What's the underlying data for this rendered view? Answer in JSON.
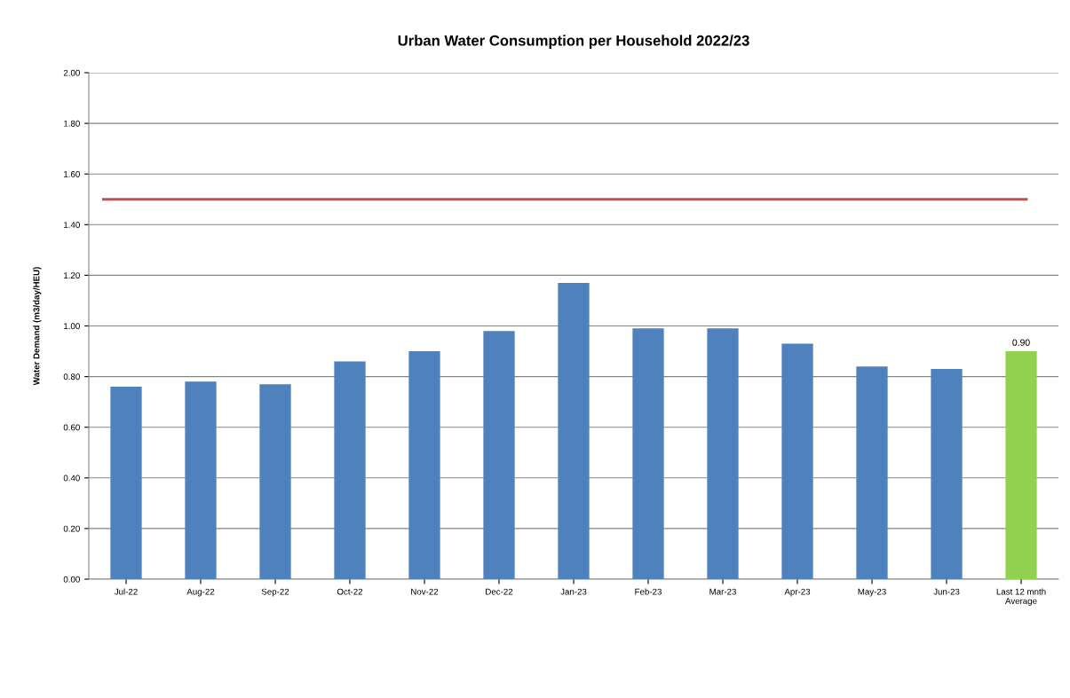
{
  "chart_data": {
    "type": "bar",
    "title": "Urban Water Consumption per Household 2022/23",
    "ylabel": "Water Demand (m3/day/HEU)",
    "categories": [
      "Jul-22",
      "Aug-22",
      "Sep-22",
      "Oct-22",
      "Nov-22",
      "Dec-22",
      "Jan-23",
      "Feb-23",
      "Mar-23",
      "Apr-23",
      "May-23",
      "Jun-23",
      "Last 12 mnth\nAverage"
    ],
    "values": [
      0.76,
      0.78,
      0.77,
      0.86,
      0.9,
      0.98,
      1.17,
      0.99,
      0.99,
      0.93,
      0.84,
      0.83,
      0.9
    ],
    "colors": [
      "#4f81bd",
      "#4f81bd",
      "#4f81bd",
      "#4f81bd",
      "#4f81bd",
      "#4f81bd",
      "#4f81bd",
      "#4f81bd",
      "#4f81bd",
      "#4f81bd",
      "#4f81bd",
      "#4f81bd",
      "#92d050"
    ],
    "value_labels": [
      null,
      null,
      null,
      null,
      null,
      null,
      null,
      null,
      null,
      null,
      null,
      null,
      "0.90"
    ],
    "ylim": [
      0,
      2.0
    ],
    "yticks": [
      {
        "value": 0,
        "label": "0.00"
      },
      {
        "value": 0.2,
        "label": "0.20"
      },
      {
        "value": 0.4,
        "label": "0.40"
      },
      {
        "value": 0.6,
        "label": "0.60"
      },
      {
        "value": 0.8,
        "label": "0.80"
      },
      {
        "value": 1.0,
        "label": "1.00"
      },
      {
        "value": 1.2,
        "label": "1.20"
      },
      {
        "value": 1.4,
        "label": "1.40"
      },
      {
        "value": 1.6,
        "label": "1.60"
      },
      {
        "value": 1.8,
        "label": "1.80"
      },
      {
        "value": 2.0,
        "label": "2.00"
      }
    ],
    "ref_lines": [
      {
        "axis": "y",
        "value": 1.5,
        "label": null,
        "color": "#c0504d"
      }
    ],
    "grid": "y",
    "legend": false
  }
}
